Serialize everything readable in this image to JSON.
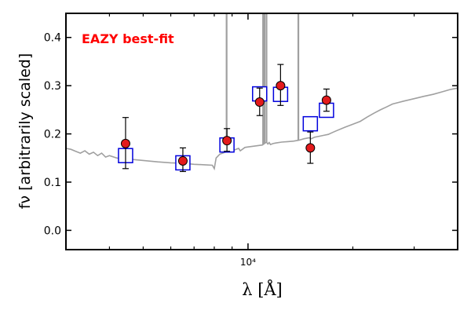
{
  "chart_data": {
    "type": "scatter",
    "annotation": "EAZY best-fit",
    "annotation_color": "#ff0000",
    "xlabel": "λ [Å]",
    "ylabel": "fν [arbitrarily scaled]",
    "x_scale": "log",
    "xlim": [
      3000,
      40000
    ],
    "ylim": [
      -0.04,
      0.45
    ],
    "yticks": [
      "0.0",
      "0.1",
      "0.2",
      "0.3",
      "0.4"
    ],
    "ytick_values": [
      0.0,
      0.1,
      0.2,
      0.3,
      0.4
    ],
    "xticks": [
      "10⁴"
    ],
    "xtick_values": [
      10000
    ],
    "grid": false,
    "series": [
      {
        "kind": "observed",
        "marker": "circle",
        "color": "#e31a1c",
        "x": [
          4450,
          6500,
          8700,
          10800,
          12400,
          15100,
          16800
        ],
        "y": [
          0.18,
          0.144,
          0.186,
          0.266,
          0.3,
          0.171,
          0.27
        ],
        "err_low": [
          0.052,
          0.022,
          0.022,
          0.028,
          0.041,
          0.032,
          0.023
        ],
        "err_high": [
          0.054,
          0.027,
          0.025,
          0.029,
          0.044,
          0.033,
          0.023
        ]
      },
      {
        "kind": "model-photometry",
        "marker": "open-square",
        "color": "#0000dd",
        "x": [
          4450,
          6500,
          8700,
          10800,
          12400,
          15100,
          16800
        ],
        "y": [
          0.155,
          0.14,
          0.177,
          0.283,
          0.282,
          0.221,
          0.249
        ]
      },
      {
        "kind": "model-spectrum",
        "style": "line",
        "color": "#a0a0a0",
        "x": [
          3000,
          3100,
          3200,
          3300,
          3400,
          3500,
          3600,
          3700,
          3800,
          3900,
          4000,
          4200,
          4500,
          4800,
          5000,
          5500,
          6000,
          6500,
          7000,
          7500,
          7900,
          8000,
          8100,
          8300,
          8600,
          9000,
          9400,
          9500,
          9800,
          10000,
          10500,
          11000,
          11300,
          11400,
          11500,
          11600,
          11800,
          12000,
          12500,
          13000,
          13500,
          14000,
          14500,
          15000,
          15200,
          15500,
          16000,
          16500,
          17000,
          17500,
          18000,
          19000,
          20000,
          21000,
          22000,
          23000,
          24000,
          25000,
          26000,
          28000,
          30000,
          32000,
          34000,
          36000,
          38000,
          40000
        ],
        "y": [
          0.17,
          0.168,
          0.164,
          0.16,
          0.165,
          0.158,
          0.162,
          0.155,
          0.16,
          0.152,
          0.155,
          0.15,
          0.148,
          0.146,
          0.145,
          0.142,
          0.14,
          0.139,
          0.137,
          0.136,
          0.135,
          0.128,
          0.15,
          0.158,
          0.162,
          0.165,
          0.17,
          0.165,
          0.172,
          0.173,
          0.175,
          0.177,
          0.183,
          0.179,
          0.182,
          0.178,
          0.18,
          0.181,
          0.183,
          0.184,
          0.185,
          0.187,
          0.19,
          0.192,
          0.19,
          0.193,
          0.195,
          0.197,
          0.199,
          0.203,
          0.207,
          0.214,
          0.22,
          0.226,
          0.235,
          0.243,
          0.25,
          0.256,
          0.262,
          0.268,
          0.273,
          0.278,
          0.282,
          0.287,
          0.292,
          0.295
        ]
      },
      {
        "kind": "emission-lines",
        "style": "spikes",
        "color": "#a0a0a0",
        "x": [
          8680,
          11050,
          11150,
          11300,
          13950
        ],
        "ytop": [
          0.45,
          0.45,
          0.45,
          0.45,
          0.45
        ]
      }
    ]
  }
}
